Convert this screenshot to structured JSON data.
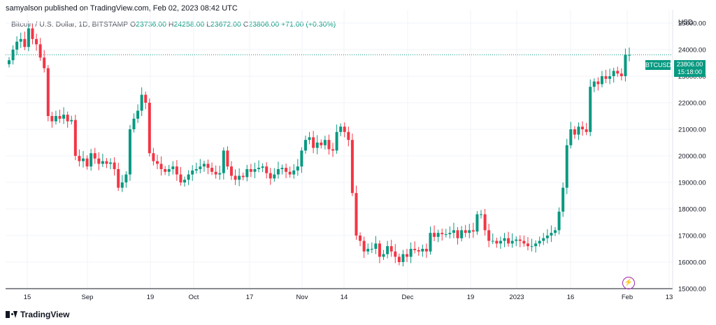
{
  "header": {
    "publisher_line": "samyalson published on TradingView.com, Feb 02, 2023 08:42 UTC"
  },
  "legend": {
    "symbol": "Bitcoin / U.S. Dollar, 1D, BITSTAMP",
    "o_label": "O",
    "o": "23736.00",
    "h_label": "H",
    "h": "24258.00",
    "l_label": "L",
    "l": "23672.00",
    "c_label": "C",
    "c": "23806.00",
    "change": "+71.00 (+0.30%)"
  },
  "price_axis": {
    "currency": "USD",
    "ticks": [
      "25000.00",
      "24000.00",
      "23000.00",
      "22000.00",
      "21000.00",
      "20000.00",
      "19000.00",
      "18000.00",
      "17000.00",
      "16000.00",
      "15000.00"
    ]
  },
  "last_price": {
    "ticker": "BTCUSD",
    "price": "23806.00",
    "countdown": "15:18:00"
  },
  "time_axis": {
    "labels": [
      "15",
      "Sep",
      "19",
      "Oct",
      "17",
      "Nov",
      "14",
      "Dec",
      "19",
      "2023",
      "16",
      "Feb",
      "13"
    ]
  },
  "footer": {
    "brand": "TradingView"
  },
  "colors": {
    "up": "#089981",
    "down": "#f23645",
    "grid": "#f0f3fa",
    "flash": "#9c27b0"
  },
  "chart_data": {
    "type": "candlestick",
    "ylim": [
      15000,
      25500
    ],
    "ohlc_close_series_approx": [
      23600,
      24000,
      24300,
      24400,
      24100,
      24800,
      24400,
      24200,
      23700,
      23300,
      21500,
      21300,
      21500,
      21400,
      21550,
      21300,
      21350,
      20000,
      19800,
      19900,
      19600,
      20100,
      19900,
      19700,
      19800,
      19700,
      19750,
      19500,
      18800,
      19000,
      19300,
      21000,
      21400,
      21700,
      22300,
      22000,
      20100,
      19800,
      19700,
      19500,
      19400,
      19500,
      19600,
      19300,
      19000,
      19100,
      19300,
      19450,
      19500,
      19600,
      19700,
      19550,
      19400,
      19300,
      19350,
      20200,
      19600,
      19250,
      19100,
      19250,
      19200,
      19500,
      19400,
      19500,
      19550,
      19600,
      19350,
      19150,
      19300,
      19500,
      19550,
      19400,
      19300,
      19450,
      19600,
      20200,
      20600,
      20700,
      20300,
      20500,
      20400,
      20600,
      20250,
      20200,
      20900,
      21100,
      20900,
      20600,
      18600,
      17000,
      16800,
      16400,
      16500,
      16500,
      16700,
      16200,
      16300,
      16600,
      16400,
      16200,
      16000,
      16300,
      16200,
      16500,
      16450,
      16400,
      16500,
      16400,
      17100,
      16950,
      17100,
      17050,
      17050,
      17100,
      17200,
      16900,
      17200,
      17100,
      17200,
      17150,
      17800,
      17800,
      17200,
      16800,
      16800,
      16700,
      16800,
      16900,
      16700,
      16800,
      16850,
      16800,
      16700,
      16600,
      16600,
      16700,
      16800,
      16900,
      17000,
      17100,
      17200,
      17900,
      18800,
      20400,
      21000,
      20800,
      21100,
      21000,
      20900,
      22600,
      22800,
      22700,
      23000,
      22900,
      23000,
      23200,
      23100,
      23000,
      23800,
      23800
    ],
    "last": 23806
  }
}
